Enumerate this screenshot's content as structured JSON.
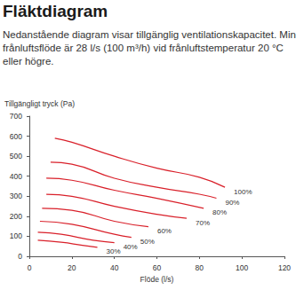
{
  "chart_data": {
    "type": "line",
    "title": "Fläktdiagram",
    "subtitle": "Nedanstående diagram visar tillgänglig ventilationskapacitet. Min frånluftsflöde är 28 l/s (100 m³/h) vid frånluftstemperatur 20 °C eller högre.",
    "y_label": "Tillgängligt tryck (Pa)",
    "x_label": "Flöde (l/s)",
    "xlim": [
      0,
      120
    ],
    "xticks": [
      0,
      20,
      40,
      60,
      80,
      100,
      120
    ],
    "ylim": [
      0,
      700
    ],
    "yticks": [
      0,
      100,
      200,
      300,
      400,
      500,
      600,
      700
    ],
    "grid": false,
    "series": [
      {
        "name": "100%",
        "color": "#d9202a",
        "x": [
          12,
          20,
          40,
          60,
          80,
          92
        ],
        "values": [
          590,
          570,
          500,
          440,
          395,
          345
        ]
      },
      {
        "name": "90%",
        "color": "#d9202a",
        "x": [
          10,
          20,
          40,
          60,
          80,
          88
        ],
        "values": [
          470,
          460,
          390,
          345,
          310,
          290
        ]
      },
      {
        "name": "80%",
        "color": "#d9202a",
        "x": [
          8,
          20,
          40,
          60,
          82
        ],
        "values": [
          390,
          380,
          330,
          290,
          240
        ]
      },
      {
        "name": "70%",
        "color": "#d9202a",
        "x": [
          8,
          20,
          40,
          60,
          74
        ],
        "values": [
          310,
          300,
          250,
          210,
          190
        ]
      },
      {
        "name": "60%",
        "color": "#d9202a",
        "x": [
          6,
          20,
          40,
          56
        ],
        "values": [
          240,
          230,
          175,
          148
        ]
      },
      {
        "name": "50%",
        "color": "#d9202a",
        "x": [
          5,
          20,
          40,
          48
        ],
        "values": [
          175,
          160,
          110,
          95
        ]
      },
      {
        "name": "40%",
        "color": "#d9202a",
        "x": [
          4,
          15,
          30,
          40
        ],
        "values": [
          120,
          110,
          80,
          68
        ]
      },
      {
        "name": "30%",
        "color": "#d9202a",
        "x": [
          4,
          15,
          25,
          32
        ],
        "values": [
          80,
          70,
          55,
          45
        ]
      }
    ]
  }
}
